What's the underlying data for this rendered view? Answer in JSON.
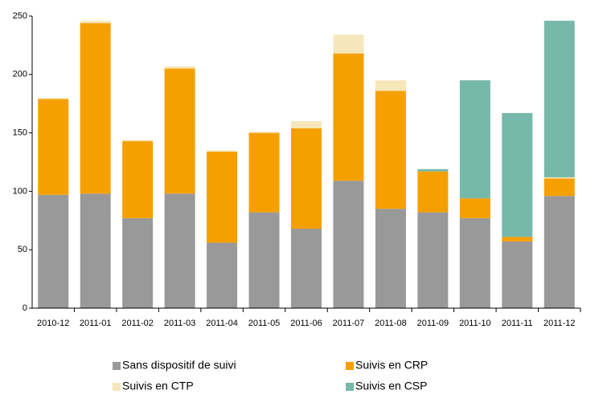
{
  "chart_data": {
    "type": "stacked_bar",
    "categories": [
      "2010-12",
      "2011-01",
      "2011-02",
      "2011-03",
      "2011-04",
      "2011-05",
      "2011-06",
      "2011-07",
      "2011-08",
      "2011-09",
      "2011-10",
      "2011-11",
      "2011-12"
    ],
    "series": [
      {
        "name": "Sans dispositif de suivi",
        "color": "#999999",
        "values": [
          97,
          98,
          77,
          98,
          56,
          82,
          68,
          109,
          85,
          82,
          77,
          57,
          96
        ]
      },
      {
        "name": "Suivis en CRP",
        "color": "#f5a000",
        "values": [
          82,
          146,
          66,
          107,
          78,
          68,
          86,
          109,
          101,
          35,
          17,
          4,
          15
        ]
      },
      {
        "name": "Suivis en CTP",
        "color": "#f6e7bb",
        "values": [
          1,
          2,
          1,
          2,
          1,
          1,
          6,
          16,
          9,
          0,
          0,
          0,
          1
        ]
      },
      {
        "name": "Suivis en CSP",
        "color": "#76b8a9",
        "values": [
          0,
          0,
          0,
          0,
          0,
          0,
          0,
          0,
          0,
          2,
          101,
          106,
          134
        ]
      }
    ],
    "ylim": [
      0,
      250
    ],
    "yticks": [
      0,
      50,
      100,
      150,
      200,
      250
    ]
  }
}
